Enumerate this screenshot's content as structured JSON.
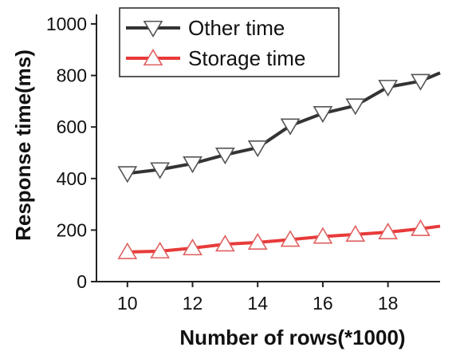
{
  "chart_data": {
    "type": "line",
    "title": "",
    "xlabel": "Number of rows(*1000)",
    "ylabel": "Response time(ms)",
    "xlim": [
      9.05,
      19.6
    ],
    "ylim": [
      0,
      1000
    ],
    "xticks": [
      10,
      12,
      14,
      16,
      18
    ],
    "yticks": [
      0,
      200,
      400,
      600,
      800,
      1000
    ],
    "grid": false,
    "legend_position": "top-left",
    "x": [
      10,
      11,
      12,
      13,
      14,
      15,
      16,
      17,
      18,
      19
    ],
    "series": [
      {
        "name": "Other time",
        "color": "#333333",
        "marker": "triangle-down-open",
        "values": [
          420,
          435,
          458,
          492,
          520,
          605,
          653,
          683,
          755,
          778
        ],
        "line_end": {
          "x": 19.6,
          "y": 810
        }
      },
      {
        "name": "Storage time",
        "color": "#e83a3a",
        "marker": "triangle-up-open",
        "values": [
          115,
          118,
          130,
          145,
          152,
          163,
          175,
          183,
          192,
          205
        ],
        "line_end": {
          "x": 19.6,
          "y": 215
        }
      }
    ]
  }
}
